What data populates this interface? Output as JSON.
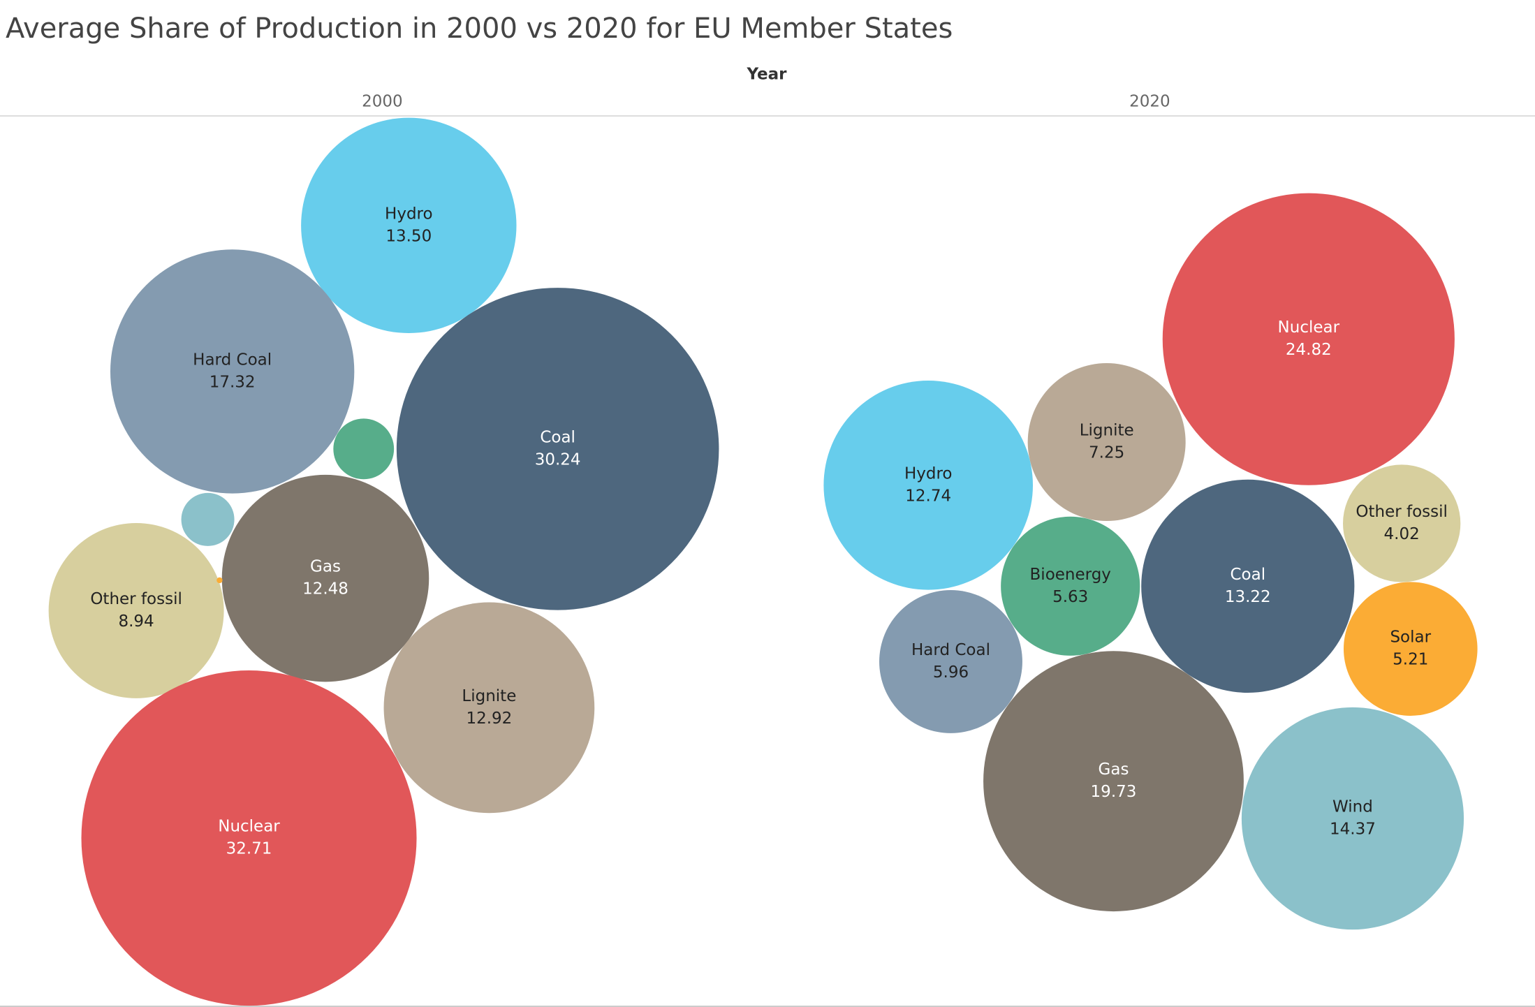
{
  "title": "Average Share of Production in 2000 vs 2020 for EU Member States",
  "facet_label": "Year",
  "chart_data": [
    {
      "type": "bubble",
      "title": "2000",
      "categories": [
        "Hydro",
        "Hard Coal",
        "Coal",
        "Gas",
        "Other fossil",
        "Lignite",
        "Nuclear",
        null,
        null,
        null
      ],
      "values": [
        13.5,
        17.32,
        30.24,
        12.48,
        8.94,
        12.92,
        32.71,
        1.07,
        0.82,
        0.01
      ],
      "value_labels": [
        "13.50",
        "17.32",
        "30.24",
        "12.48",
        "8.94",
        "12.92",
        "32.71",
        null,
        null,
        null
      ],
      "colors": [
        "#67cdec",
        "#849bb0",
        "#4e677e",
        "#7f766b",
        "#d7cf9e",
        "#b9a996",
        "#e15759",
        "#57ad8a",
        "#8bc1ca",
        "#fbac35"
      ]
    },
    {
      "type": "bubble",
      "title": "2020",
      "categories": [
        "Nuclear",
        "Lignite",
        "Hydro",
        "Other fossil",
        "Bioenergy",
        "Coal",
        "Solar",
        "Hard Coal",
        "Gas",
        "Wind"
      ],
      "values": [
        24.82,
        7.25,
        12.74,
        4.02,
        5.63,
        13.22,
        5.21,
        5.96,
        19.73,
        14.37
      ],
      "value_labels": [
        "24.82",
        "7.25",
        "12.74",
        "4.02",
        "5.63",
        "13.22",
        "5.21",
        "5.96",
        "19.73",
        "14.37"
      ],
      "colors": [
        "#e15759",
        "#b9a996",
        "#67cdec",
        "#d7cf9e",
        "#57ad8a",
        "#4e677e",
        "#fbac35",
        "#849bb0",
        "#7f766b",
        "#8bc1ca"
      ]
    }
  ]
}
